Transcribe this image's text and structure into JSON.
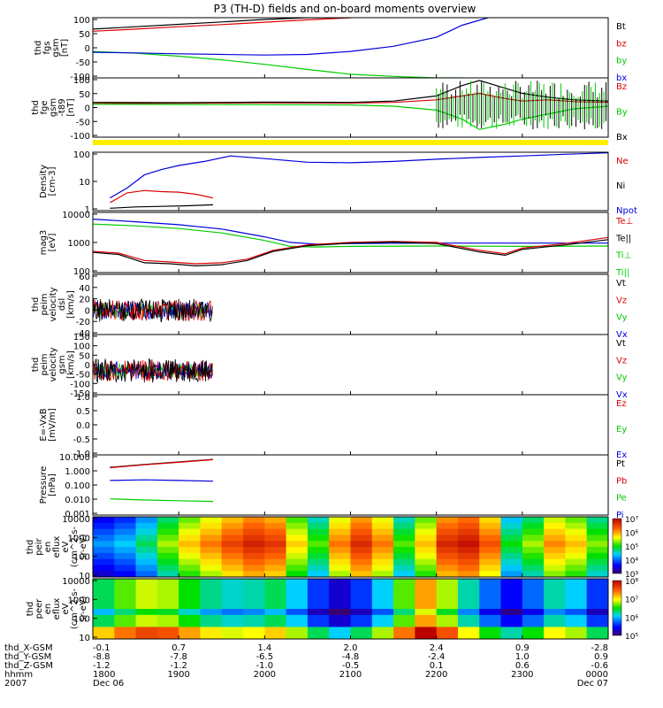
{
  "title": "P3 (TH-D) fields and on-board moments overview",
  "footer": {
    "row_labels": [
      "thd_X-GSM",
      "thd_Y-GSM",
      "thd_Z-GSM",
      "hhmm",
      "2007"
    ],
    "columns": [
      {
        "x": "-0.1",
        "y": "-8.8",
        "z": "-1.2",
        "time": "1800",
        "date": "Dec 06"
      },
      {
        "x": "0.7",
        "y": "-7.8",
        "z": "-1.2",
        "time": "1900",
        "date": ""
      },
      {
        "x": "1.4",
        "y": "-6.5",
        "z": "-1.0",
        "time": "2000",
        "date": ""
      },
      {
        "x": "2.0",
        "y": "-4.8",
        "z": "-0.5",
        "time": "2100",
        "date": ""
      },
      {
        "x": "2.4",
        "y": "-2.4",
        "z": "0.1",
        "time": "2200",
        "date": ""
      },
      {
        "x": "0.9",
        "y": "1.0",
        "z": "0.6",
        "time": "2300",
        "date": ""
      },
      {
        "x": "-2.8",
        "y": "0.9",
        "z": "-0.6",
        "time": "0000",
        "date": "Dec 07"
      }
    ]
  },
  "colors": {
    "black": "#000000",
    "red": "#dd0000",
    "green": "#00cc00",
    "blue": "#0000dd",
    "yellow": "#ffee00"
  },
  "chart_data": [
    {
      "type": "line",
      "id": "fgs",
      "ylabel": [
        "thd",
        "fgs",
        "gsm",
        "[nT]"
      ],
      "ylim": [
        -100,
        100
      ],
      "yticks": [
        "100",
        "50",
        "0",
        "-50",
        "-100"
      ],
      "legend": [
        "Bt",
        "bz",
        "by",
        "bx"
      ],
      "x_range": [
        0,
        6
      ],
      "series": [
        {
          "name": "Bt",
          "color": "black",
          "x": [
            0,
            0.5,
            1,
            1.5,
            2,
            2.5,
            3
          ],
          "values": [
            62,
            70,
            78,
            86,
            94,
            100,
            100
          ]
        },
        {
          "name": "bz",
          "color": "red",
          "x": [
            0,
            0.5,
            1,
            1.5,
            2,
            2.5,
            3
          ],
          "values": [
            55,
            62,
            70,
            77,
            85,
            93,
            100
          ]
        },
        {
          "name": "by",
          "color": "green",
          "x": [
            0,
            0.5,
            1,
            1.5,
            2,
            2.5,
            3,
            3.5,
            4,
            4.3
          ],
          "values": [
            -12,
            -18,
            -28,
            -40,
            -55,
            -72,
            -88,
            -95,
            -100,
            -100
          ]
        },
        {
          "name": "bx",
          "color": "blue",
          "x": [
            0,
            0.5,
            1,
            1.5,
            2,
            2.5,
            3,
            3.5,
            4,
            4.3,
            4.6
          ],
          "values": [
            -15,
            -17,
            -20,
            -22,
            -24,
            -22,
            -12,
            5,
            35,
            75,
            100
          ]
        }
      ]
    },
    {
      "type": "line",
      "id": "fge",
      "ylabel": [
        "thd",
        "fge",
        "gsm",
        "-t89",
        "[nT]"
      ],
      "ylim": [
        -130,
        100
      ],
      "yticks": [
        "100",
        "50",
        "0",
        "-50",
        "-100"
      ],
      "legend": [
        "Bz",
        "By",
        "Bx"
      ],
      "x_range": [
        0,
        6
      ],
      "series": [
        {
          "name": "Bz",
          "color": "red",
          "x": [
            0,
            1,
            2,
            3,
            3.5,
            4,
            4.3,
            4.5,
            4.8,
            5.0,
            5.3,
            5.6,
            6
          ],
          "values": [
            0,
            2,
            3,
            2,
            5,
            15,
            30,
            40,
            20,
            10,
            15,
            8,
            5
          ]
        },
        {
          "name": "By",
          "color": "green",
          "x": [
            0,
            1,
            2,
            3,
            3.5,
            4,
            4.3,
            4.5,
            4.8,
            5.0,
            5.3,
            5.6,
            6
          ],
          "values": [
            -2,
            -3,
            -4,
            -5,
            -10,
            -25,
            -60,
            -100,
            -80,
            -60,
            -40,
            -20,
            -10
          ]
        },
        {
          "name": "Bx",
          "color": "black",
          "x": [
            0,
            1,
            2,
            3,
            3.5,
            4,
            4.3,
            4.5,
            4.8,
            5.0,
            5.3,
            5.6,
            6
          ],
          "values": [
            5,
            4,
            6,
            5,
            10,
            30,
            70,
            90,
            60,
            40,
            25,
            15,
            10
          ]
        }
      ]
    },
    {
      "type": "line",
      "id": "density",
      "ylabel": [
        "Density",
        "[cm-3]"
      ],
      "scale": "log",
      "ylim": [
        0.5,
        300
      ],
      "yticks": [
        "100",
        "10",
        "1"
      ],
      "legend": [
        "Ne",
        "Ni",
        "Npot"
      ],
      "x_range": [
        0,
        6
      ],
      "series": [
        {
          "name": "Ne",
          "color": "red",
          "x": [
            0.2,
            0.4,
            0.6,
            0.8,
            1.0,
            1.2,
            1.4
          ],
          "values": [
            1.2,
            3.5,
            4.5,
            4.0,
            3.8,
            3.0,
            2.0
          ]
        },
        {
          "name": "Ni",
          "color": "black",
          "x": [
            0.2,
            0.5,
            0.8,
            1.1,
            1.4
          ],
          "values": [
            0.65,
            0.75,
            0.8,
            0.85,
            0.95
          ]
        },
        {
          "name": "Npot",
          "color": "blue",
          "x": [
            0.2,
            0.4,
            0.6,
            0.8,
            1.0,
            1.3,
            1.6,
            2.0,
            2.5,
            3.0,
            3.5,
            4.0,
            4.5,
            5.0,
            5.5,
            6.0
          ],
          "values": [
            2,
            6,
            25,
            45,
            70,
            110,
            200,
            150,
            100,
            95,
            110,
            140,
            170,
            200,
            240,
            280
          ]
        }
      ]
    },
    {
      "type": "line",
      "id": "temp",
      "ylabel": [
        "mag3",
        "[eV]"
      ],
      "scale": "log",
      "ylim": [
        20,
        10000
      ],
      "yticks": [
        "10000",
        "1000",
        "100"
      ],
      "legend": [
        "Te⊥",
        "Te||",
        "Ti⊥",
        "Ti||"
      ],
      "x_range": [
        0,
        6
      ],
      "series": [
        {
          "name": "Ti⊥",
          "color": "blue",
          "x": [
            0,
            0.5,
            1.0,
            1.5,
            2.0,
            2.3,
            2.6,
            3,
            4,
            5,
            6
          ],
          "values": [
            5000,
            3800,
            2800,
            1800,
            800,
            450,
            380,
            400,
            420,
            420,
            420
          ]
        },
        {
          "name": "Ti||",
          "color": "green",
          "x": [
            0,
            0.5,
            1.0,
            1.5,
            2.0,
            2.3,
            2.6,
            3,
            4,
            5,
            6
          ],
          "values": [
            3000,
            2500,
            1900,
            1200,
            550,
            300,
            280,
            300,
            310,
            300,
            310
          ]
        },
        {
          "name": "Te⊥",
          "color": "red",
          "x": [
            0,
            0.3,
            0.6,
            0.9,
            1.2,
            1.5,
            1.8,
            2.1,
            2.5,
            3,
            3.5,
            4,
            4.5,
            4.8,
            5,
            5.5,
            6
          ],
          "values": [
            180,
            150,
            70,
            60,
            50,
            55,
            80,
            200,
            350,
            450,
            500,
            450,
            200,
            140,
            250,
            400,
            750
          ]
        },
        {
          "name": "Te||",
          "color": "black",
          "x": [
            0,
            0.3,
            0.6,
            0.9,
            1.2,
            1.5,
            1.8,
            2.1,
            2.5,
            3,
            3.5,
            4,
            4.5,
            4.8,
            5,
            5.5,
            6
          ],
          "values": [
            160,
            130,
            55,
            50,
            40,
            45,
            70,
            180,
            320,
            420,
            470,
            400,
            170,
            120,
            220,
            350,
            600
          ]
        }
      ]
    },
    {
      "type": "line",
      "id": "peim",
      "ylabel": [
        "thd",
        "peim",
        "velocity",
        "dsl",
        "[km/s]"
      ],
      "ylim": [
        -40,
        60
      ],
      "yticks": [
        "60",
        "40",
        "20",
        "0",
        "-20",
        "-40"
      ],
      "legend": [
        "Vt",
        "Vz",
        "Vy",
        "Vx"
      ],
      "x_range": [
        0,
        6
      ],
      "noise_until": 1.4
    },
    {
      "type": "line",
      "id": "peim-gsm",
      "ylabel": [
        "thd",
        "peim",
        "velocity",
        "gsm",
        "[km/s]"
      ],
      "ylim": [
        -150,
        150
      ],
      "yticks": [
        "150",
        "100",
        "50",
        "0",
        "-50",
        "-100",
        "-150"
      ],
      "legend": [
        "Vt",
        "Vz",
        "Vy",
        "Vx"
      ],
      "x_range": [
        0,
        6
      ],
      "noise_until": 1.4
    },
    {
      "type": "line",
      "id": "efield",
      "ylabel": [
        "E=-VxB",
        "[mV/m]"
      ],
      "ylim": [
        -1,
        1
      ],
      "yticks": [
        "1.0",
        "0.5",
        "0.0",
        "-0.5",
        "-1.0"
      ],
      "legend": [
        "Ez",
        "Ey",
        "Ex"
      ],
      "x_range": [
        0,
        6
      ]
    },
    {
      "type": "line",
      "id": "pressure",
      "ylabel": [
        "Pressure",
        "[nPa]"
      ],
      "scale": "log",
      "ylim": [
        0.001,
        10
      ],
      "yticks": [
        "10.000",
        "1.000",
        "0.100",
        "0.010",
        "0.001"
      ],
      "legend": [
        "Pt",
        "Pb",
        "Pe",
        "Pi"
      ],
      "x_range": [
        0,
        6
      ],
      "series": [
        {
          "name": "Pt",
          "color": "black",
          "x": [
            0.2,
            0.6,
            1.0,
            1.4
          ],
          "values": [
            1.5,
            2.3,
            3.4,
            5.0
          ]
        },
        {
          "name": "Pb",
          "color": "red",
          "x": [
            0.2,
            0.6,
            1.0,
            1.4
          ],
          "values": [
            1.4,
            2.2,
            3.2,
            4.8
          ]
        },
        {
          "name": "Pi",
          "color": "blue",
          "x": [
            0.2,
            0.6,
            1.0,
            1.4
          ],
          "values": [
            0.2,
            0.22,
            0.2,
            0.18
          ]
        },
        {
          "name": "Pe",
          "color": "green",
          "x": [
            0.2,
            0.6,
            1.0,
            1.4
          ],
          "values": [
            0.012,
            0.01,
            0.009,
            0.008
          ]
        }
      ]
    },
    {
      "type": "heatmap",
      "id": "peir",
      "ylabel": [
        "thd",
        "peir",
        "en",
        "eflux",
        "eV",
        "(cm^2-s-",
        "sr-eV)"
      ],
      "scale": "log",
      "ylim": [
        10,
        10000
      ],
      "yticks": [
        "10000",
        "1000",
        "100",
        "10"
      ],
      "colorbar_ticks": [
        "10⁷",
        "10⁶",
        "10⁵",
        "10⁴",
        "10³"
      ],
      "columns": [
        0.3,
        0.35,
        0.45,
        0.6,
        0.72,
        0.8,
        0.88,
        0.94,
        0.9,
        0.7,
        0.55,
        0.8,
        0.92,
        0.8,
        0.55,
        0.72,
        0.93,
        0.97,
        0.85,
        0.5,
        0.6,
        0.78,
        0.72,
        0.58
      ]
    },
    {
      "type": "heatmap",
      "id": "peer",
      "ylabel": [
        "thd",
        "peer",
        "en",
        "eflux",
        "eV",
        "(cm^2-s-",
        "sr-eV)"
      ],
      "scale": "log",
      "ylim": [
        10,
        10000
      ],
      "yticks": [
        "10000",
        "1000",
        "100",
        "10"
      ],
      "colorbar_ticks": [
        "10⁸",
        "10⁷",
        "10⁶",
        "10⁵"
      ],
      "columns": [
        0.45,
        0.55,
        0.62,
        0.6,
        0.5,
        0.42,
        0.38,
        0.4,
        0.45,
        0.35,
        0.2,
        0.1,
        0.2,
        0.35,
        0.55,
        0.75,
        0.6,
        0.4,
        0.25,
        0.15,
        0.25,
        0.4,
        0.35,
        0.2
      ]
    }
  ]
}
